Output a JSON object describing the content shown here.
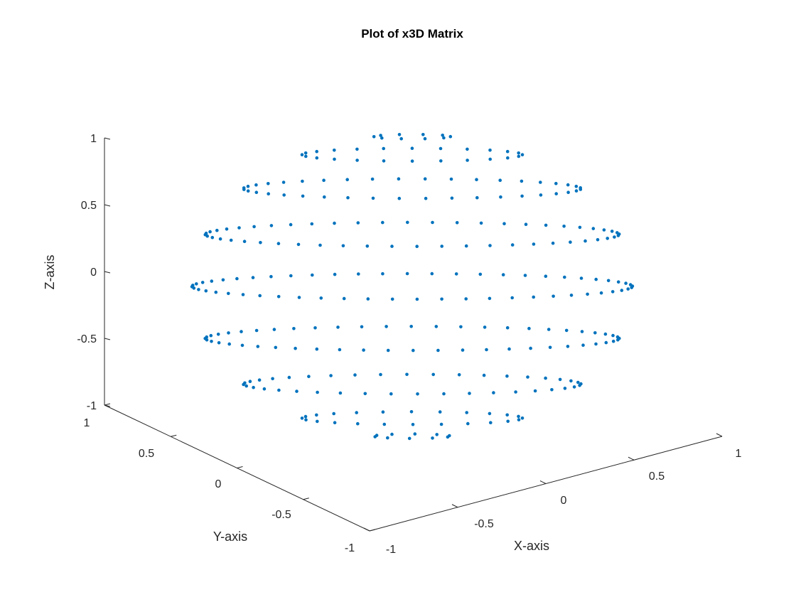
{
  "chart_data": {
    "type": "scatter",
    "projection": "3d",
    "title": "Plot of x3D Matrix",
    "xlabel": "X-axis",
    "ylabel": "Y-axis",
    "zlabel": "Z-axis",
    "xlim": [
      -1,
      1
    ],
    "ylim": [
      -1,
      1
    ],
    "zlim": [
      -1,
      1
    ],
    "xticks": [
      "-1",
      "-0.5",
      "0",
      "0.5",
      "1"
    ],
    "yticks": [
      "-1",
      "-0.5",
      "0",
      "0.5",
      "1"
    ],
    "zticks": [
      "-1",
      "-0.5",
      "0",
      "0.5",
      "1"
    ],
    "grid": false,
    "marker_color": "#0072BD",
    "surface": "unit sphere",
    "rings_theta_deg": [
      10,
      30,
      50,
      70,
      90,
      110,
      130,
      150,
      170
    ],
    "points_per_ring": [
      10,
      24,
      40,
      52,
      56,
      52,
      40,
      24,
      10
    ]
  }
}
